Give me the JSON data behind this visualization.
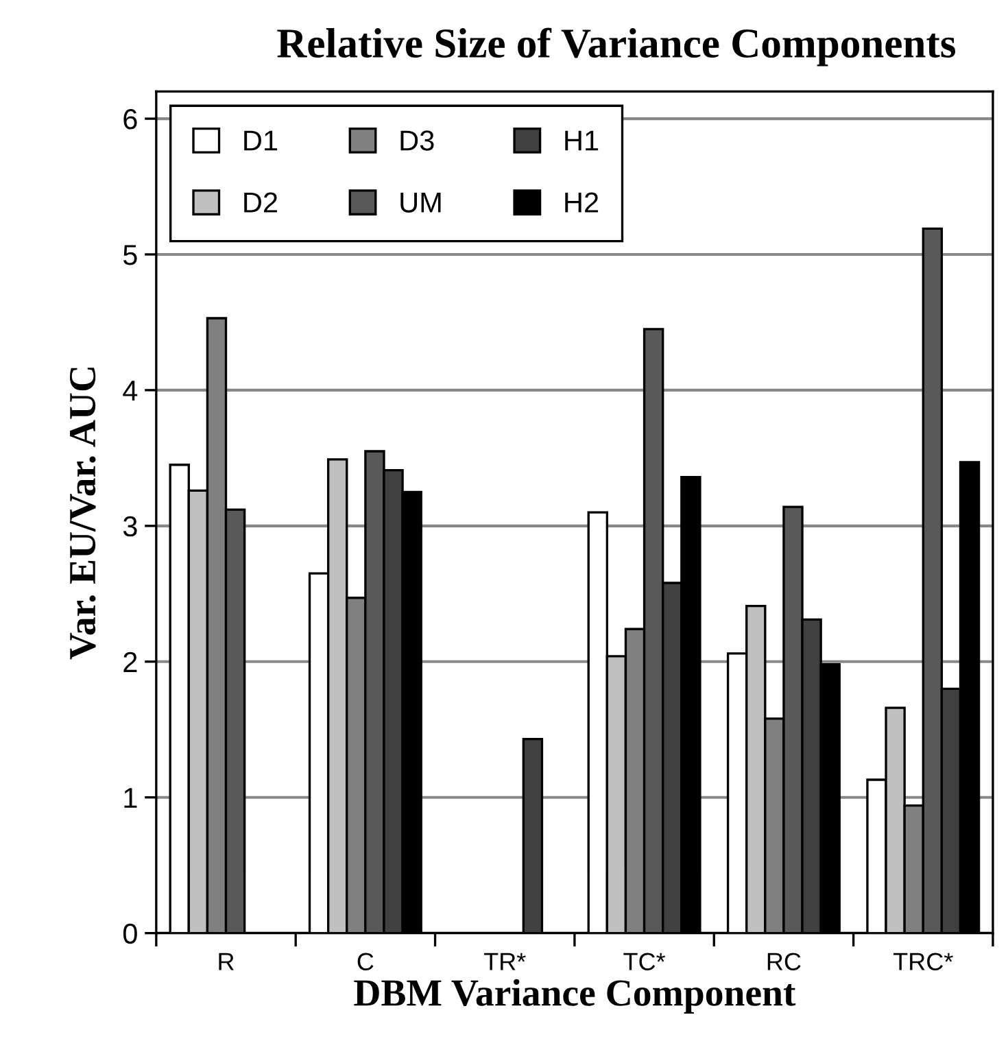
{
  "chart_data": {
    "type": "bar",
    "title": "Relative Size of Variance Components",
    "xlabel": "DBM Variance Component",
    "ylabel": "Var. EU/Var. AUC",
    "categories": [
      "R",
      "C",
      "TR*",
      "TC*",
      "RC",
      "TRC*"
    ],
    "series": [
      {
        "name": "D1",
        "color": "#ffffff",
        "values": [
          3.45,
          2.65,
          null,
          3.1,
          2.06,
          1.13
        ]
      },
      {
        "name": "D2",
        "color": "#c0c0c0",
        "values": [
          3.26,
          3.49,
          null,
          2.04,
          2.41,
          1.66
        ]
      },
      {
        "name": "D3",
        "color": "#808080",
        "values": [
          4.53,
          2.47,
          null,
          2.24,
          1.58,
          0.94
        ]
      },
      {
        "name": "UM",
        "color": "#595959",
        "values": [
          3.12,
          3.55,
          null,
          4.45,
          3.14,
          5.19
        ]
      },
      {
        "name": "H1",
        "color": "#404040",
        "values": [
          null,
          3.41,
          1.43,
          2.58,
          2.31,
          1.8
        ]
      },
      {
        "name": "H2",
        "color": "#000000",
        "values": [
          null,
          3.25,
          null,
          3.36,
          1.98,
          3.47
        ]
      }
    ],
    "ylim": [
      0,
      6.2
    ],
    "yticks": [
      0,
      1,
      2,
      3,
      4,
      5,
      6
    ],
    "grid": "y",
    "legend": "top left"
  }
}
